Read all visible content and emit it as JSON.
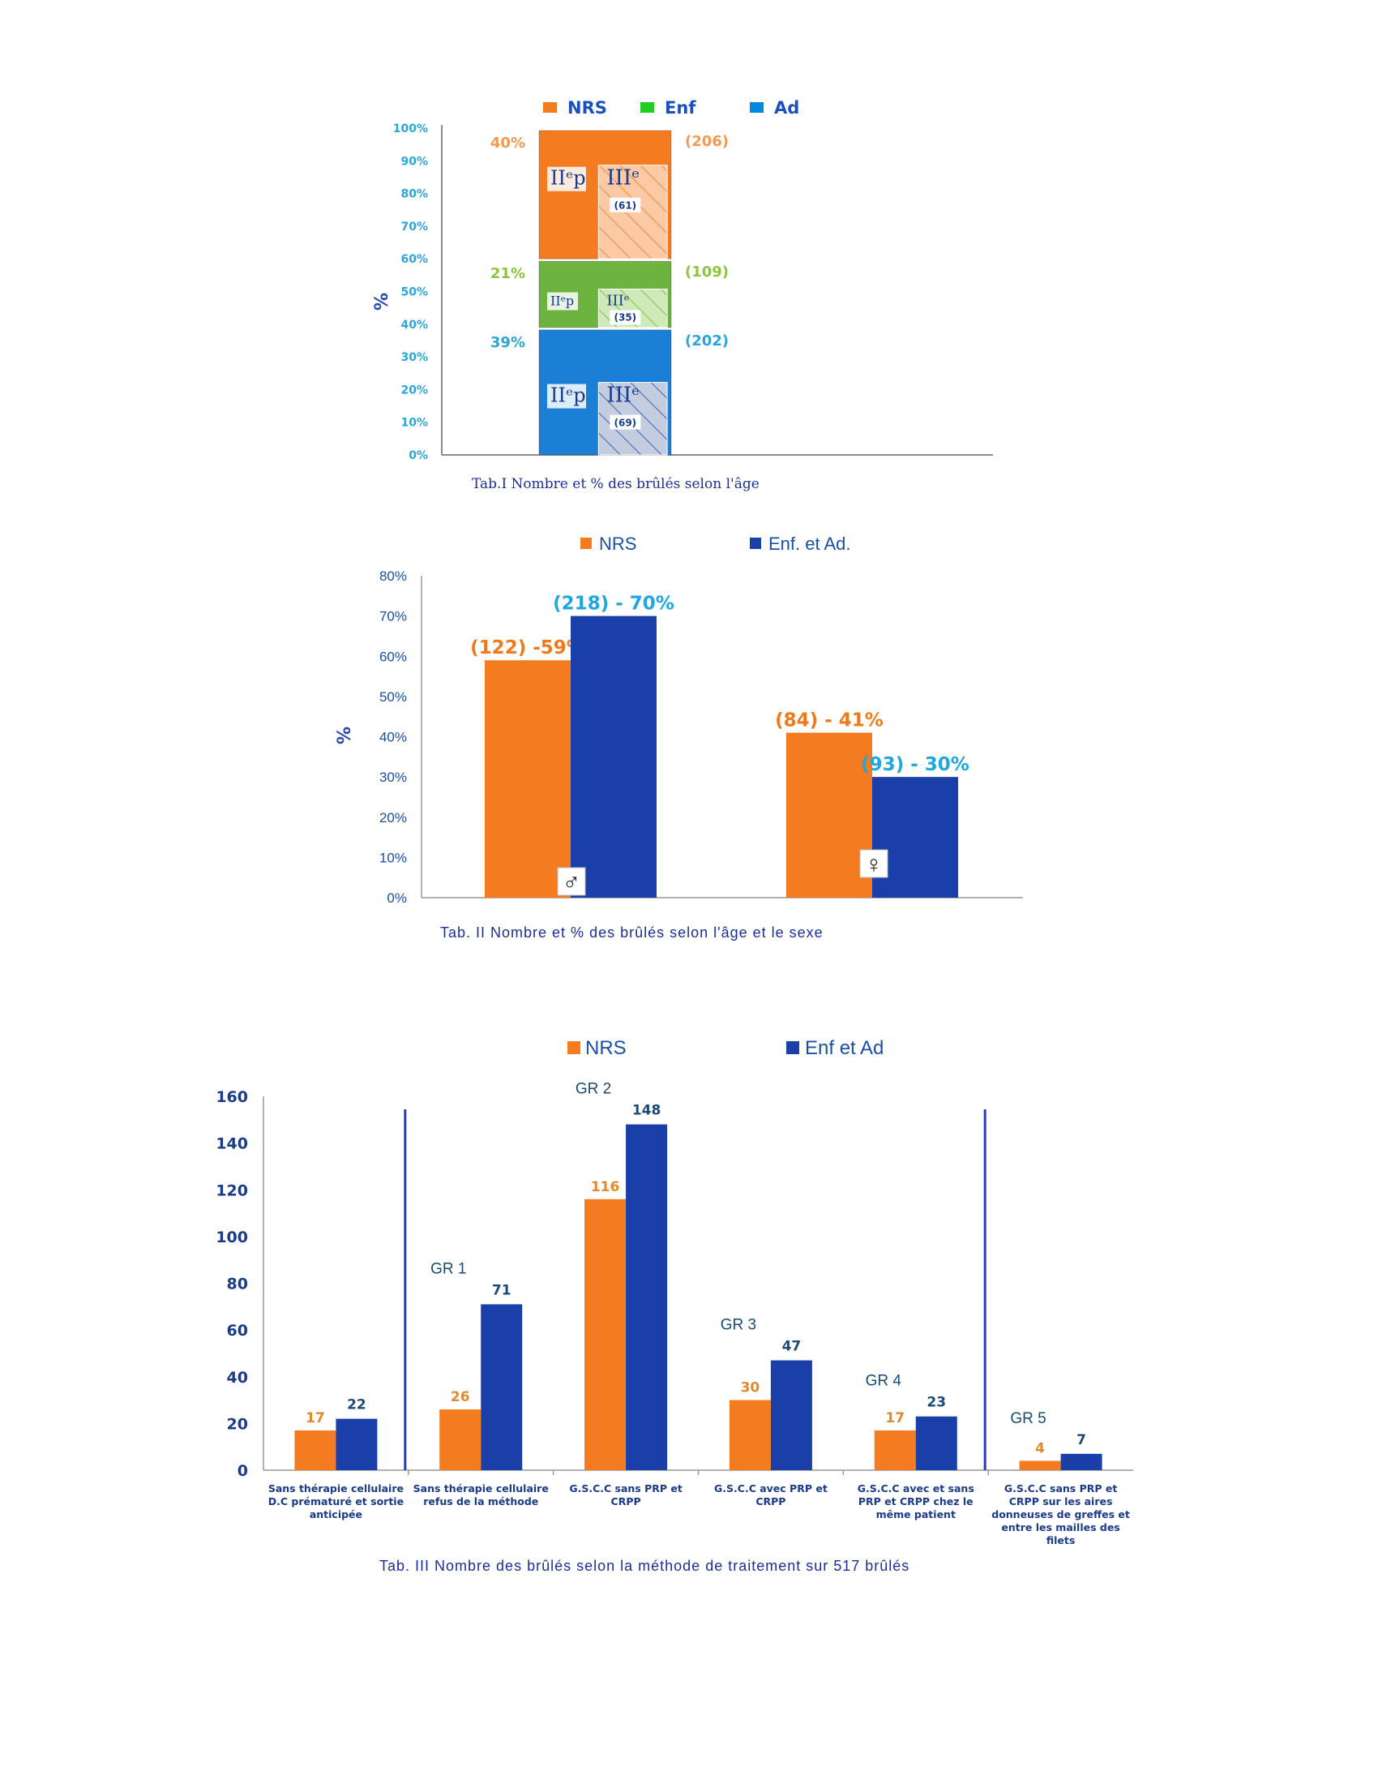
{
  "colors": {
    "orange": "#f47b20",
    "green": "#6db33f",
    "blue1": "#1c7fd6",
    "navy": "#1a3fa8",
    "axis_cyan": "#2aa7d8",
    "axis_navy": "#2a4aa8",
    "caption": "#1a2e9a",
    "legend_green": "#22cc22",
    "legend_blue": "#0088e0"
  },
  "chart_data": [
    {
      "type": "bar",
      "stacked": true,
      "caption": "Tab.I Nombre et % des brûlés selon l'âge",
      "ylabel": "%",
      "ylim": [
        0,
        100
      ],
      "yticks": [
        "0%",
        "10%",
        "20%",
        "30%",
        "40%",
        "50%",
        "60%",
        "70%",
        "80%",
        "90%",
        "100%"
      ],
      "legend": [
        "NRS",
        "Enf",
        "Ad"
      ],
      "legend_position": "top",
      "series": [
        {
          "name": "Ad",
          "value": 39,
          "pct_label": "39%",
          "count_label": "(202)",
          "sub_left": "IIᵉp",
          "sub_right": "IIIᵉ",
          "sub_count": "(69)",
          "color": "#1c7fd6"
        },
        {
          "name": "Enf",
          "value": 21,
          "pct_label": "21%",
          "count_label": "(109)",
          "sub_left": "IIᵉp",
          "sub_right": "IIIᵉ",
          "sub_count": "(35)",
          "color": "#6db33f"
        },
        {
          "name": "NRS",
          "value": 40,
          "pct_label": "40%",
          "count_label": "(206)",
          "sub_left": "IIᵉp",
          "sub_right": "IIIᵉ",
          "sub_count": "(61)",
          "color": "#f47b20"
        }
      ]
    },
    {
      "type": "bar",
      "caption": "Tab. II Nombre et % des brûlés selon l'âge et le sexe",
      "ylabel": "%",
      "ylim": [
        0,
        80
      ],
      "yticks": [
        "0%",
        "10%",
        "20%",
        "30%",
        "40%",
        "50%",
        "60%",
        "70%",
        "80%"
      ],
      "legend": [
        "NRS",
        "Enf. et Ad."
      ],
      "legend_position": "top",
      "categories": [
        "♂",
        "♀"
      ],
      "series": [
        {
          "name": "NRS",
          "values": [
            59,
            41
          ],
          "labels": [
            "(122)  -59%",
            "(84) - 41%"
          ],
          "color": "#f47b20"
        },
        {
          "name": "Enf. et Ad.",
          "values": [
            70,
            30
          ],
          "labels": [
            "(218) - 70%",
            "(93) - 30%"
          ],
          "color": "#1a3fa8"
        }
      ]
    },
    {
      "type": "bar",
      "caption": "Tab. III Nombre des brûlés selon la méthode de traitement sur 517 brûlés",
      "ylim": [
        0,
        160
      ],
      "yticks": [
        "0",
        "20",
        "40",
        "60",
        "80",
        "100",
        "120",
        "140",
        "160"
      ],
      "legend": [
        "NRS",
        "Enf et Ad"
      ],
      "legend_position": "top",
      "categories": [
        [
          "Sans thérapie cellulaire",
          "D.C prématuré  et sortie",
          "anticipée"
        ],
        [
          "Sans thérapie cellulaire",
          "refus de la méthode"
        ],
        [
          "G.S.C.C sans PRP et",
          "CRPP"
        ],
        [
          "G.S.C.C avec PRP et",
          "CRPP"
        ],
        [
          "G.S.C.C avec et sans",
          "PRP et CRPP chez le",
          "même patient"
        ],
        [
          "G.S.C.C sans PRP et",
          "CRPP sur les aires",
          "donneuses  de greffes et",
          "entre les mailles des",
          "filets"
        ]
      ],
      "groups": [
        "",
        "GR 1",
        "GR 2",
        "GR 3",
        "GR 4",
        "GR 5"
      ],
      "series": [
        {
          "name": "NRS",
          "values": [
            17,
            26,
            116,
            30,
            17,
            4
          ],
          "color": "#f47b20"
        },
        {
          "name": "Enf et Ad",
          "values": [
            22,
            71,
            148,
            47,
            23,
            7
          ],
          "color": "#1a3fa8"
        }
      ]
    }
  ]
}
